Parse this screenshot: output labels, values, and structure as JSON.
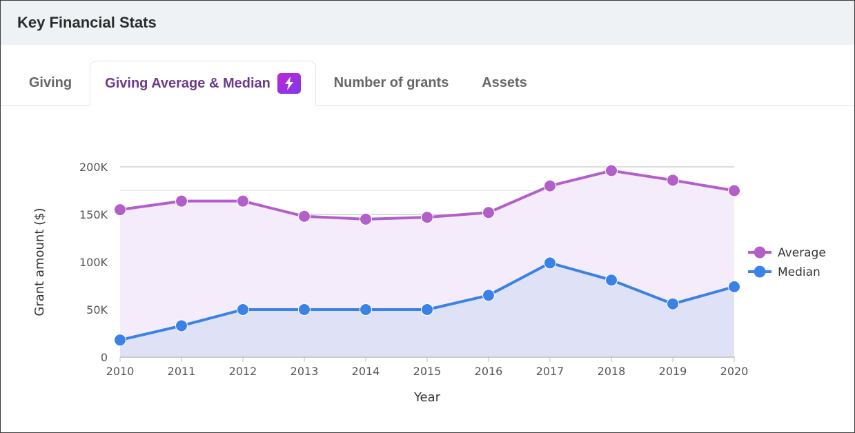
{
  "header": {
    "title": "Key Financial Stats"
  },
  "tabs": [
    {
      "label": "Giving",
      "active": false
    },
    {
      "label": "Giving Average & Median",
      "active": true,
      "icon": "bolt-icon"
    },
    {
      "label": "Number of grants",
      "active": false
    },
    {
      "label": "Assets",
      "active": false
    }
  ],
  "colors": {
    "average": "#b35fc9",
    "median": "#3b82e6",
    "average_fill": "#f4ecfa",
    "median_fill": "#dfe2f6"
  },
  "chart_data": {
    "type": "line",
    "x": [
      2010,
      2011,
      2012,
      2013,
      2014,
      2015,
      2016,
      2017,
      2018,
      2019,
      2020
    ],
    "series": [
      {
        "name": "Average",
        "values": [
          155000,
          164000,
          164000,
          148000,
          145000,
          147000,
          152000,
          180000,
          196000,
          186000,
          175000
        ]
      },
      {
        "name": "Median",
        "values": [
          18000,
          33000,
          50000,
          50000,
          50000,
          50000,
          65000,
          99000,
          81000,
          56000,
          74000
        ]
      }
    ],
    "xlabel": "Year",
    "ylabel": "Grant amount ($)",
    "ylim": [
      0,
      200000
    ],
    "yticks": [
      0,
      50000,
      100000,
      150000,
      200000
    ],
    "ytick_labels": [
      "0",
      "50K",
      "100K",
      "150K",
      "200K"
    ],
    "grid": true,
    "area_fill": true,
    "legend_position": "right"
  }
}
